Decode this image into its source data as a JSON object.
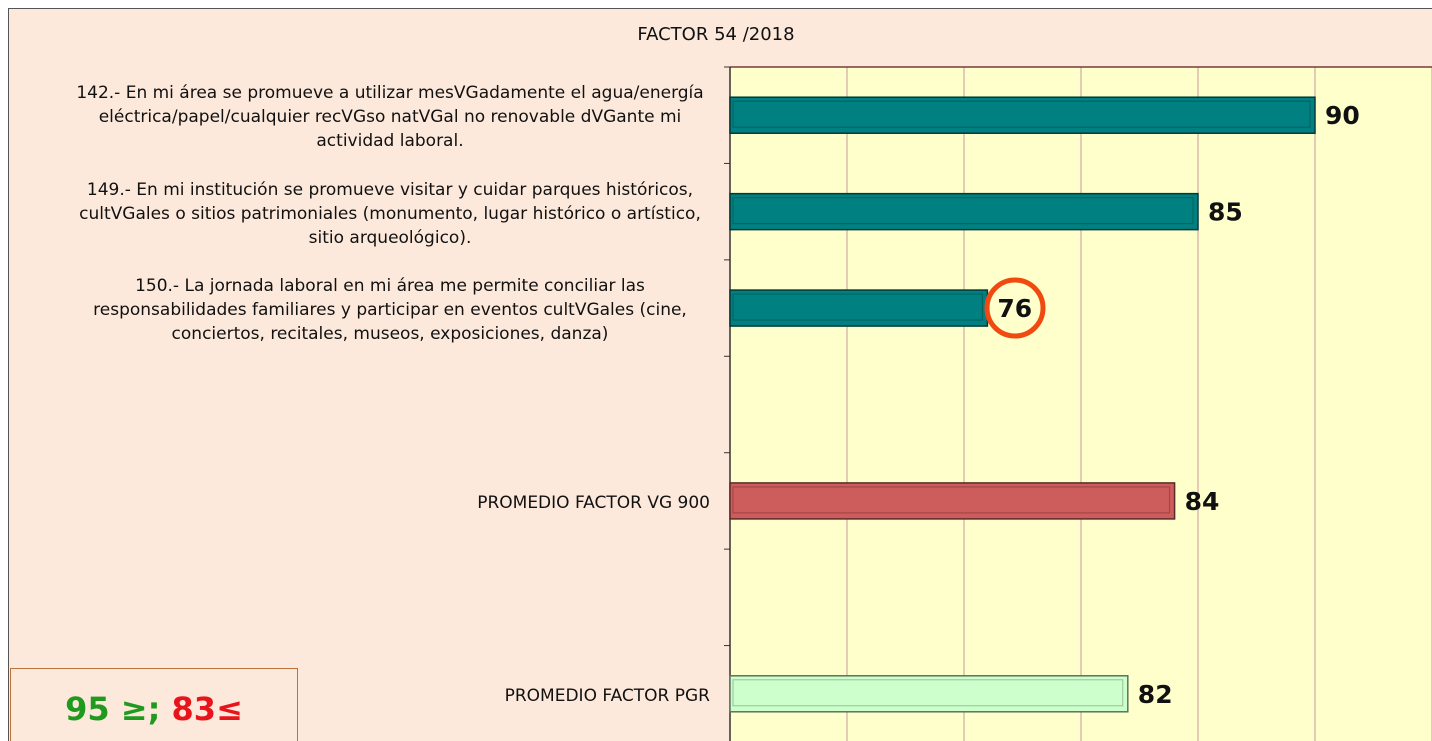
{
  "chart_data": {
    "type": "bar",
    "orientation": "horizontal",
    "title": "FACTOR 54 /2018",
    "categories": [
      "142.- En mi área se promueve a utilizar mesVGadamente el agua/energía eléctrica/papel/cualquier recVGso natVGal no renovable dVGante mi actividad laboral.",
      "149.- En mi institución se promueve visitar y cuidar parques históricos, cultVGales o sitios patrimoniales (monumento, lugar histórico o artístico, sitio arqueológico).",
      "150.- La jornada laboral en mi área me permite conciliar las responsabilidades familiares y participar en eventos cultVGales (cine, conciertos, recitales, museos, exposiciones, danza)",
      null,
      "PROMEDIO FACTOR VG 900",
      null,
      "PROMEDIO FACTOR PGR"
    ],
    "values": [
      90,
      85,
      76,
      null,
      84,
      null,
      82
    ],
    "colors": [
      "#008080",
      "#008080",
      "#008080",
      null,
      "#cd5c5c",
      null,
      "#ccffcc"
    ],
    "xlim": [
      65,
      95
    ],
    "xticks": [
      65,
      70,
      75,
      80,
      85,
      90,
      95
    ],
    "grid": true,
    "legend_text": [
      "95 ≥;",
      "83≤"
    ],
    "legend_colors": [
      "#1f9a1f",
      "#e8141b"
    ]
  }
}
